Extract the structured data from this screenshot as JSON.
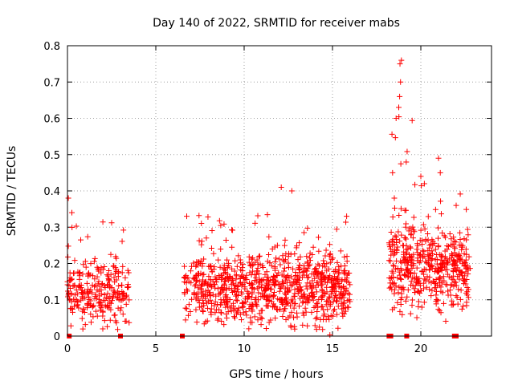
{
  "chart_data": {
    "type": "scatter",
    "title": "Day 140 of 2022, SRMTID for receiver mabs",
    "xlabel": "GPS time / hours",
    "ylabel": "SRMTID / TECUs",
    "xlim": [
      0,
      24
    ],
    "ylim": [
      0,
      0.8
    ],
    "x_ticks": [
      0,
      5,
      10,
      15,
      20
    ],
    "y_ticks": [
      0,
      0.1,
      0.2,
      0.3,
      0.4,
      0.5,
      0.6,
      0.7,
      0.8
    ],
    "x_tick_labels": [
      "0",
      "5",
      "10",
      "15",
      "20"
    ],
    "y_tick_labels": [
      "0",
      "0.1",
      "0.2",
      "0.3",
      "0.4",
      "0.5",
      "0.6",
      "0.7",
      "0.8"
    ],
    "grid": true,
    "marker": "plus",
    "color": "#ff0000",
    "series": [
      {
        "name": "SRMTID",
        "segments": [
          {
            "x_start": 0.0,
            "x_end": 3.5,
            "mean": 0.12,
            "spread": 0.08,
            "peak": 0.39,
            "n": 260
          },
          {
            "x_start": 6.6,
            "x_end": 16.0,
            "mean": 0.13,
            "spread": 0.09,
            "peak": 0.41,
            "n": 900
          },
          {
            "x_start": 18.2,
            "x_end": 19.6,
            "mean": 0.2,
            "spread": 0.12,
            "peak": 0.76,
            "n": 160
          },
          {
            "x_start": 19.6,
            "x_end": 22.8,
            "mean": 0.18,
            "spread": 0.1,
            "peak": 0.5,
            "n": 320
          }
        ],
        "highlights": [
          {
            "x": 0.05,
            "y": 0.38
          },
          {
            "x": 0.25,
            "y": 0.34
          },
          {
            "x": 6.75,
            "y": 0.33
          },
          {
            "x": 12.1,
            "y": 0.41
          },
          {
            "x": 12.7,
            "y": 0.4
          },
          {
            "x": 15.8,
            "y": 0.33
          },
          {
            "x": 18.4,
            "y": 0.45
          },
          {
            "x": 18.6,
            "y": 0.6
          },
          {
            "x": 18.75,
            "y": 0.63
          },
          {
            "x": 18.8,
            "y": 0.66
          },
          {
            "x": 18.85,
            "y": 0.7
          },
          {
            "x": 18.82,
            "y": 0.75
          },
          {
            "x": 18.9,
            "y": 0.76
          },
          {
            "x": 18.5,
            "y": 0.38
          },
          {
            "x": 20.0,
            "y": 0.44
          },
          {
            "x": 20.2,
            "y": 0.42
          },
          {
            "x": 21.0,
            "y": 0.49
          },
          {
            "x": 21.1,
            "y": 0.45
          },
          {
            "x": 22.0,
            "y": 0.36
          }
        ]
      }
    ],
    "gap_markers": [
      0.1,
      3.0,
      6.5,
      18.2,
      18.3,
      19.2,
      21.9,
      22.0
    ]
  }
}
